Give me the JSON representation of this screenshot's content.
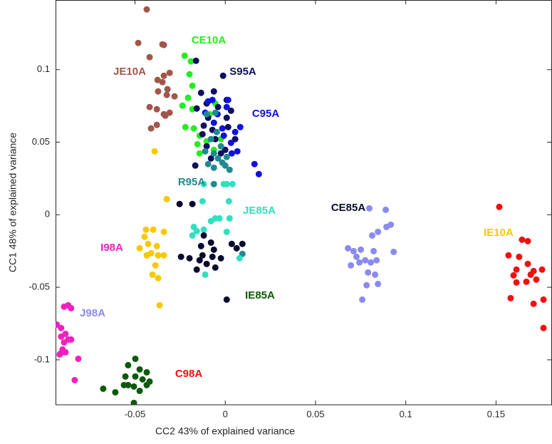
{
  "chart_data": {
    "type": "scatter",
    "xlabel": "CC2 43% of explained variance",
    "ylabel": "CC1 48% of explained variance",
    "xlim": [
      -0.094,
      0.181
    ],
    "ylim": [
      -0.131,
      0.148
    ],
    "xticks": [
      -0.05,
      0,
      0.05,
      0.1,
      0.15
    ],
    "yticks": [
      -0.1,
      -0.05,
      0,
      0.05,
      0.1
    ],
    "series": [
      {
        "name": "JE10A",
        "color": "#a0574a",
        "x": [
          -0.0435,
          -0.0482,
          -0.0348,
          -0.034,
          -0.0419,
          -0.0308,
          -0.034,
          -0.0375,
          -0.0348,
          -0.032,
          -0.0372,
          -0.0324,
          -0.0419,
          -0.0379,
          -0.0281,
          -0.034,
          -0.0308,
          -0.0411,
          -0.0379,
          -0.0332
        ],
        "y": [
          0.1415,
          0.1184,
          0.1174,
          0.117,
          0.1086,
          0.0978,
          0.0958,
          0.0929,
          0.0914,
          0.0865,
          0.085,
          0.0826,
          0.0742,
          0.0727,
          0.0816,
          0.0693,
          0.0703,
          0.0595,
          0.0619,
          0.0683
        ]
      },
      {
        "name": "CE10A",
        "color": "#22ee22",
        "x": [
          -0.0225,
          -0.019,
          -0.0198,
          -0.0182,
          -0.0206,
          -0.0237,
          -0.0182,
          -0.0221,
          -0.0174,
          -0.0142,
          -0.0103,
          -0.0154,
          -0.0055,
          -0.0087,
          -0.0142,
          -0.0063,
          -0.0024
        ],
        "y": [
          0.1096,
          0.1057,
          0.0968,
          0.0889,
          0.0806,
          0.0752,
          0.0727,
          0.0604,
          0.0595,
          0.0545,
          0.0506,
          0.0486,
          0.0767,
          0.0693,
          0.0423,
          0.0447,
          0.0521
        ]
      },
      {
        "name": "S95A",
        "color": "#101060",
        "x": [
          -0.0162,
          -0.0012,
          -0.0134,
          -0.0103,
          -0.0063,
          -0.0158,
          -0.0095,
          -0.0119,
          -0.0071,
          -0.0126,
          -0.0103,
          0.0008,
          0.0016,
          -0.0055,
          -0.0024,
          -0.0079,
          0,
          -0.0166,
          0.0055,
          0.0032,
          -0.004,
          0.0008
        ],
        "y": [
          0.1061,
          0.0958,
          0.084,
          0.0767,
          0.085,
          0.0732,
          0.0668,
          0.0614,
          0.0585,
          0.0555,
          0.0472,
          0.0668,
          0.0604,
          0.0521,
          0.0423,
          0.0388,
          0.0447,
          0.0339,
          0.0521,
          0.0717,
          0.0742,
          0.0791
        ]
      },
      {
        "name": "C95A",
        "color": "#1010e0",
        "x": [
          0.0016,
          0.0008,
          -0.0095,
          0.0083,
          -0.0008,
          0.0055,
          0.0032,
          0.0036,
          0.0067,
          0.0162,
          0.0186,
          -0.0071,
          -0.0111,
          -0.0043,
          -0.0016,
          -0.0063
        ],
        "y": [
          0.0791,
          0.0742,
          0.0781,
          0.0604,
          0.0545,
          0.057,
          0.0496,
          0.0423,
          0.0437,
          0.0349,
          0.028,
          0.0791,
          0.0703,
          0.0693,
          0.0595,
          0.0634
        ]
      },
      {
        "name": "R95A",
        "color": "#208a90",
        "x": [
          -0.0103,
          -0.0055,
          -0.0079,
          -0.0063,
          -0.004,
          -0.0016,
          0.0008,
          0.0024,
          -0.0047,
          -0.0111,
          -0.0063,
          -0.0024,
          -0.0063,
          0,
          0.0095,
          -0.0095
        ],
        "y": [
          0.0693,
          0.0703,
          0.0521,
          0.0423,
          0.0388,
          0.0359,
          0.0398,
          0.031,
          0.057,
          0.0437,
          0.0211,
          0.0472,
          0.0324,
          0.0339,
          -0.027,
          0.0349
        ]
      },
      {
        "name": "JE85A",
        "color": "#30e0c0",
        "x": [
          -0.0008,
          0.0008,
          0.004,
          -0.0119,
          -0.0126,
          0.002,
          -0.0055,
          -0.0032,
          0.0024,
          -0.0079,
          -0.0174,
          -0.0158,
          0.0008,
          -0.0182,
          0.0079,
          -0.0111,
          -0.0119
        ],
        "y": [
          0.0211,
          0.0211,
          0.0211,
          0.0211,
          0.0093,
          0.0093,
          -0.0025,
          -0.0025,
          -0.0025,
          -0.0044,
          -0.0084,
          -0.0113,
          -0.0118,
          -0.0143,
          -0.03,
          -0.0413,
          -0.0103
        ]
      },
      {
        "name": "CE85A",
        "color": "#0a0a30",
        "x": [
          -0.0253,
          -0.0182,
          -0.0119,
          -0.0079,
          -0.0134,
          -0.0063,
          0.0036,
          0.0095,
          0.0063,
          -0.0071,
          -0.0126,
          -0.0245,
          -0.0198,
          -0.0142,
          -0.0103,
          -0.0158,
          -0.0055,
          -0.0024,
          0.0008
        ],
        "y": [
          0.0074,
          0.0074,
          -0.0143,
          -0.0192,
          -0.0216,
          -0.0241,
          -0.0201,
          -0.0201,
          -0.0231,
          -0.029,
          -0.028,
          -0.029,
          -0.03,
          -0.0314,
          -0.0339,
          -0.0378,
          -0.0364,
          -0.03,
          -0.0585
        ]
      },
      {
        "name": "IE10A",
        "color": "#f8c800",
        "x": [
          -0.0391,
          -0.0324,
          -0.0439,
          -0.0399,
          -0.0447,
          -0.034,
          -0.0427,
          -0.0379,
          -0.0474,
          -0.0411,
          -0.0372,
          -0.034,
          -0.0435,
          -0.0387,
          -0.0403,
          -0.0372,
          -0.0364
        ],
        "y": [
          0.0437,
          0.0108,
          -0.0103,
          -0.0103,
          -0.0152,
          -0.0118,
          -0.0201,
          -0.0216,
          -0.0231,
          -0.0265,
          -0.028,
          -0.028,
          -0.028,
          -0.0349,
          -0.0413,
          -0.0437,
          -0.0624
        ]
      },
      {
        "name": "I98A",
        "color": "#f020c0",
        "x": [
          -0.0893,
          -0.087,
          -0.0854,
          -0.0933,
          -0.0909,
          -0.0885,
          -0.0909,
          -0.087,
          -0.0854,
          -0.0893,
          -0.0901,
          -0.0909,
          -0.0885,
          -0.0917,
          -0.0814,
          -0.0834
        ],
        "y": [
          -0.0634,
          -0.0624,
          -0.0644,
          -0.0757,
          -0.0781,
          -0.0821,
          -0.084,
          -0.086,
          -0.086,
          -0.088,
          -0.0929,
          -0.0953,
          -0.0948,
          -0.0963,
          -0.0993,
          -0.114
        ]
      },
      {
        "name": "IE85A",
        "color": "#0a5a0a",
        "x": [
          -0.0498,
          -0.0538,
          -0.0474,
          -0.0553,
          -0.0498,
          -0.0435,
          -0.0458,
          -0.0538,
          -0.0506,
          -0.0435,
          -0.0561,
          -0.0676,
          -0.0609,
          -0.0474,
          -0.0419,
          -0.0506
        ],
        "y": [
          -0.0993,
          -0.1037,
          -0.1066,
          -0.1115,
          -0.1115,
          -0.1086,
          -0.1135,
          -0.1174,
          -0.1184,
          -0.1174,
          -0.1174,
          -0.1199,
          -0.1224,
          -0.1214,
          -0.115,
          -0.1297
        ]
      },
      {
        "name": "J98A",
        "color": "#8a8af0",
        "x": [
          0.0798,
          0.0889,
          0.0917,
          0.0893,
          0.0846,
          0.0814,
          0.068,
          0.0711,
          0.0751,
          0.0933,
          0.0822,
          0.0727,
          0.0775,
          0.0838,
          0.0806,
          0.0743,
          0.0696,
          0.0791,
          0.083,
          0.0846,
          0.0783,
          0.0759
        ],
        "y": [
          0.0044,
          0.0034,
          -0.0069,
          -0.0084,
          -0.0118,
          -0.0143,
          -0.0231,
          -0.0251,
          -0.0241,
          -0.0256,
          -0.0251,
          -0.029,
          -0.0314,
          -0.0314,
          -0.0329,
          -0.0329,
          -0.0349,
          -0.0398,
          -0.0413,
          -0.0477,
          -0.0486,
          -0.0585
        ]
      },
      {
        "name": "C98A",
        "color": "#f01010",
        "x": [
          0.1518,
          0.1644,
          0.1676,
          0.1569,
          0.1628,
          0.1676,
          0.1613,
          0.1708,
          0.1755,
          0.1692,
          0.1597,
          0.1723,
          0.1613,
          0.1668,
          0.1581,
          0.1708,
          0.1763,
          0.1763
        ],
        "y": [
          0.0054,
          -0.0172,
          -0.0182,
          -0.028,
          -0.029,
          -0.0339,
          -0.0378,
          -0.0388,
          -0.0378,
          -0.0413,
          -0.0418,
          -0.0447,
          -0.0467,
          -0.0462,
          -0.0575,
          -0.0614,
          -0.0585,
          -0.0781
        ]
      }
    ]
  }
}
